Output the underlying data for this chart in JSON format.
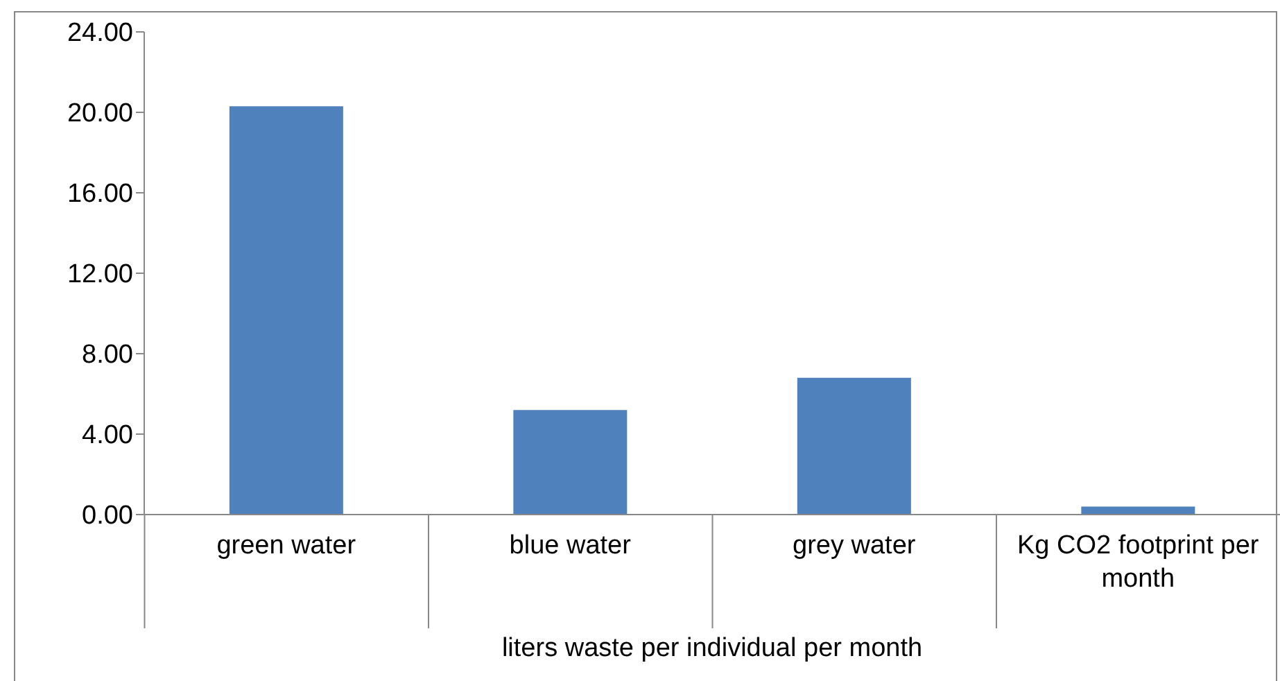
{
  "chart_data": {
    "type": "bar",
    "categories": [
      "green water",
      "blue water",
      "grey water",
      "Kg CO2 footprint per month"
    ],
    "values": [
      20.3,
      5.2,
      6.8,
      0.4
    ],
    "color": "#4f81bd",
    "xlabel": "liters waste per individual per month",
    "ylim": [
      0,
      24
    ],
    "yticks": [
      {
        "value": 0,
        "label": "0.00"
      },
      {
        "value": 4,
        "label": "4.00"
      },
      {
        "value": 8,
        "label": "8.00"
      },
      {
        "value": 12,
        "label": "12.00"
      },
      {
        "value": 16,
        "label": "16.00"
      },
      {
        "value": 20,
        "label": "20.00"
      },
      {
        "value": 24,
        "label": "24.00"
      }
    ],
    "grid": false,
    "legend": false
  }
}
